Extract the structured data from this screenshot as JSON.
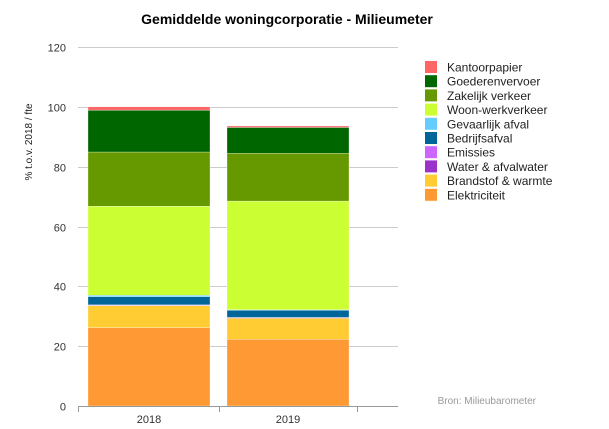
{
  "chart_data": {
    "type": "bar",
    "stacked": true,
    "title": "Gemiddelde woningcorporatie - Milieumeter",
    "ylabel": "% t.o.v. 2018 / fte",
    "xlabel": "",
    "categories": [
      "2018",
      "2019"
    ],
    "ylim": [
      0,
      120
    ],
    "yticks": [
      0,
      20,
      40,
      60,
      80,
      100,
      120
    ],
    "grid": true,
    "legend_position": "right",
    "source": "Bron: Milieubarometer",
    "series": [
      {
        "name": "Elektriciteit",
        "color": "#ff9933",
        "values": [
          26.2,
          22.3
        ]
      },
      {
        "name": "Brandstof & warmte",
        "color": "#ffcc33",
        "values": [
          7.3,
          7.0
        ]
      },
      {
        "name": "Water & afvalwater",
        "color": "#9933cc",
        "values": [
          0.2,
          0.2
        ]
      },
      {
        "name": "Emissies",
        "color": "#cc66ff",
        "values": [
          0.1,
          0.1
        ]
      },
      {
        "name": "Bedrijfsafval",
        "color": "#006699",
        "values": [
          2.7,
          2.4
        ]
      },
      {
        "name": "Gevaarlijk afval",
        "color": "#66ccff",
        "values": [
          0.5,
          0.2
        ]
      },
      {
        "name": "Woon-werkverkeer",
        "color": "#ccff33",
        "values": [
          29.8,
          36.3
        ]
      },
      {
        "name": "Zakelijk verkeer",
        "color": "#669900",
        "values": [
          18.1,
          16.0
        ]
      },
      {
        "name": "Goederenvervoer",
        "color": "#006600",
        "values": [
          14.0,
          8.6
        ]
      },
      {
        "name": "Kantoorpapier",
        "color": "#ff6666",
        "values": [
          1.1,
          0.5
        ]
      }
    ]
  }
}
